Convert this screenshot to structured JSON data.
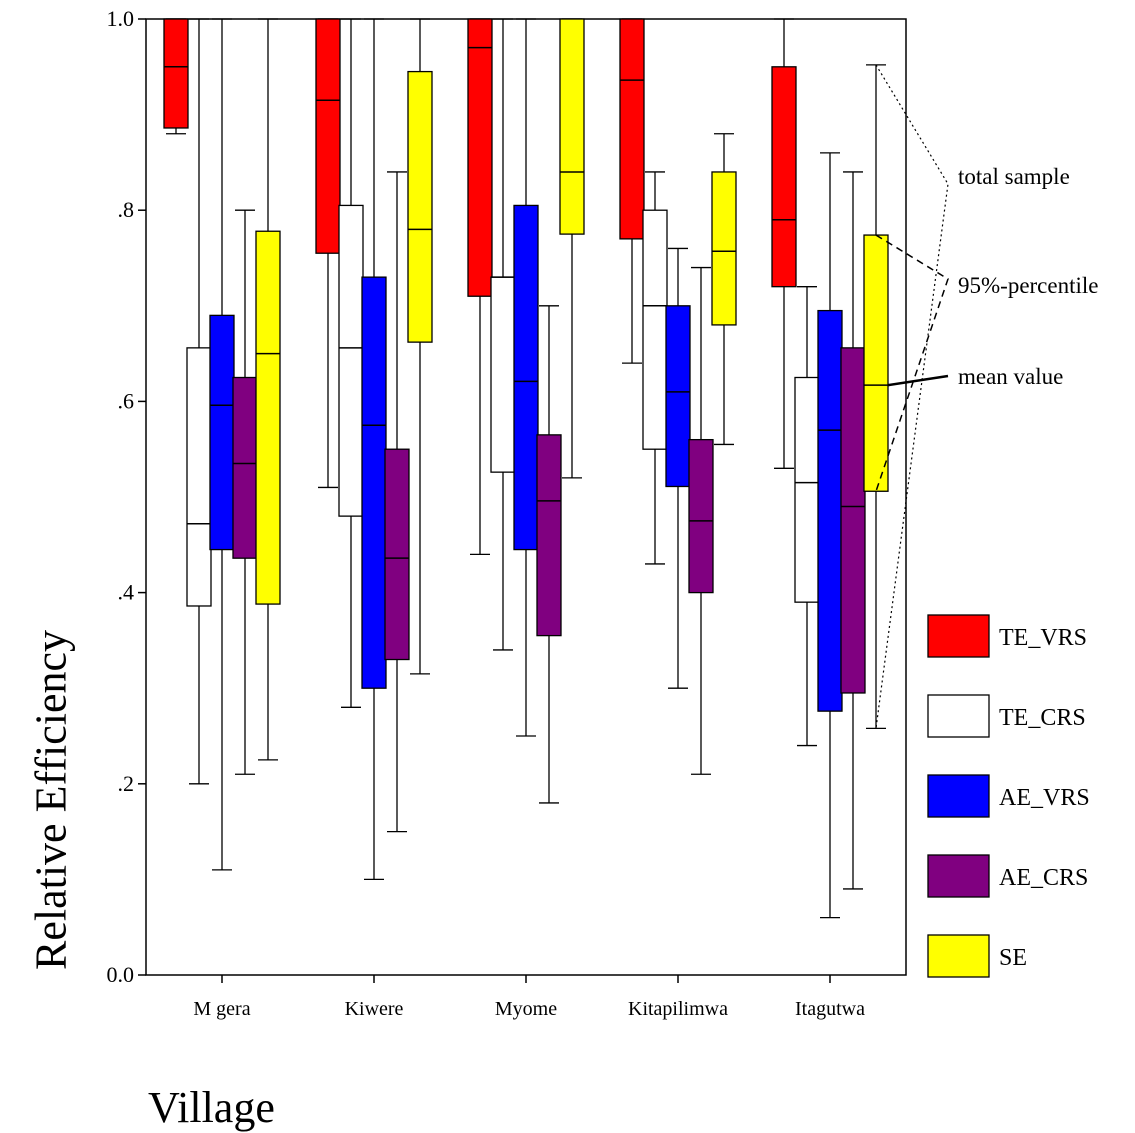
{
  "chart_data": {
    "type": "box",
    "xlabel": "Village",
    "ylabel": "Relative Efficiency",
    "ylim": [
      0,
      1
    ],
    "yticks": [
      {
        "value": 0.0,
        "label": "0.0"
      },
      {
        "value": 0.2,
        "label": ".2"
      },
      {
        "value": 0.4,
        "label": ".4"
      },
      {
        "value": 0.6,
        "label": ".6"
      },
      {
        "value": 0.8,
        "label": ".8"
      },
      {
        "value": 1.0,
        "label": "1.0"
      }
    ],
    "categories": [
      "M gera",
      "Kiwere",
      "Myome",
      "Kitapilimwa",
      "Itagutwa"
    ],
    "series": [
      {
        "name": "TE_VRS",
        "color": "#ff0000",
        "boxes": [
          {
            "low": 0.88,
            "q1": 0.886,
            "median": 0.95,
            "q3": 1.0,
            "high": 1.0
          },
          {
            "low": 0.51,
            "q1": 0.755,
            "median": 0.915,
            "q3": 1.0,
            "high": 1.0
          },
          {
            "low": 0.44,
            "q1": 0.71,
            "median": 0.97,
            "q3": 1.0,
            "high": 1.0
          },
          {
            "low": 0.64,
            "q1": 0.77,
            "median": 0.936,
            "q3": 1.0,
            "high": 1.0
          },
          {
            "low": 0.53,
            "q1": 0.72,
            "median": 0.79,
            "q3": 0.95,
            "high": 1.0
          }
        ]
      },
      {
        "name": "TE_CRS",
        "color": "#ffffff",
        "boxes": [
          {
            "low": 0.2,
            "q1": 0.386,
            "median": 0.472,
            "q3": 0.656,
            "high": 1.0
          },
          {
            "low": 0.28,
            "q1": 0.48,
            "median": 0.656,
            "q3": 0.805,
            "high": 1.0
          },
          {
            "low": 0.34,
            "q1": 0.526,
            "median": 0.73,
            "q3": 0.73,
            "high": 1.0
          },
          {
            "low": 0.43,
            "q1": 0.55,
            "median": 0.7,
            "q3": 0.8,
            "high": 0.84
          },
          {
            "low": 0.24,
            "q1": 0.39,
            "median": 0.515,
            "q3": 0.625,
            "high": 0.72
          }
        ]
      },
      {
        "name": "AE_VRS",
        "color": "#0000ff",
        "boxes": [
          {
            "low": 0.11,
            "q1": 0.445,
            "median": 0.596,
            "q3": 0.69,
            "high": 1.0
          },
          {
            "low": 0.1,
            "q1": 0.3,
            "median": 0.575,
            "q3": 0.73,
            "high": 1.0
          },
          {
            "low": 0.25,
            "q1": 0.445,
            "median": 0.621,
            "q3": 0.805,
            "high": 1.0
          },
          {
            "low": 0.3,
            "q1": 0.511,
            "median": 0.61,
            "q3": 0.7,
            "high": 0.76
          },
          {
            "low": 0.06,
            "q1": 0.276,
            "median": 0.57,
            "q3": 0.695,
            "high": 0.86
          }
        ]
      },
      {
        "name": "AE_CRS",
        "color": "#800080",
        "boxes": [
          {
            "low": 0.21,
            "q1": 0.436,
            "median": 0.535,
            "q3": 0.625,
            "high": 0.8
          },
          {
            "low": 0.15,
            "q1": 0.33,
            "median": 0.436,
            "q3": 0.55,
            "high": 0.84
          },
          {
            "low": 0.18,
            "q1": 0.355,
            "median": 0.496,
            "q3": 0.565,
            "high": 0.7
          },
          {
            "low": 0.21,
            "q1": 0.4,
            "median": 0.475,
            "q3": 0.56,
            "high": 0.74
          },
          {
            "low": 0.09,
            "q1": 0.295,
            "median": 0.49,
            "q3": 0.656,
            "high": 0.84
          }
        ]
      },
      {
        "name": "SE",
        "color": "#ffff00",
        "boxes": [
          {
            "low": 0.225,
            "q1": 0.388,
            "median": 0.65,
            "q3": 0.778,
            "high": 1.0
          },
          {
            "low": 0.315,
            "q1": 0.662,
            "median": 0.78,
            "q3": 0.945,
            "high": 1.0
          },
          {
            "low": 0.52,
            "q1": 0.775,
            "median": 0.84,
            "q3": 1.0,
            "high": 1.0
          },
          {
            "low": 0.555,
            "q1": 0.68,
            "median": 0.757,
            "q3": 0.84,
            "high": 0.88
          },
          {
            "low": 0.258,
            "q1": 0.506,
            "median": 0.617,
            "q3": 0.774,
            "high": 0.952
          }
        ]
      }
    ],
    "annotations": [
      "total sample",
      "95%-percentile",
      "mean value"
    ],
    "legend_position": "right"
  }
}
